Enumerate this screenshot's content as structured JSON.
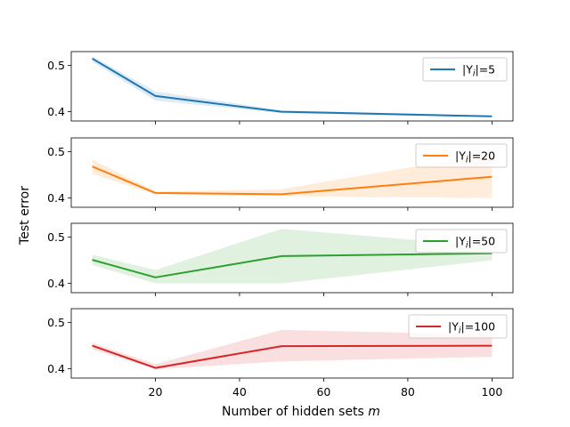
{
  "chart_data": {
    "type": "line",
    "xlabel": "Number of hidden sets",
    "xlabel_var": "m",
    "ylabel": "Test error",
    "xlim": [
      0,
      105
    ],
    "x_ticks": [
      20,
      40,
      60,
      80,
      100
    ],
    "x_tick_labels": [
      "20",
      "40",
      "60",
      "80",
      "100"
    ],
    "y_ticks": [
      0.4,
      0.5
    ],
    "y_tick_labels": [
      "0.4",
      "0.5"
    ],
    "legend_position": "top-right",
    "subplots": [
      {
        "legend_prefix": "|Y",
        "legend_sub": "i",
        "legend_suffix": "|=5",
        "color": "#1f77b4",
        "ylim": [
          0.38,
          0.53
        ],
        "x": [
          5,
          20,
          50,
          100
        ],
        "values": [
          0.515,
          0.434,
          0.4,
          0.39
        ],
        "lower": [
          0.508,
          0.424,
          0.397,
          0.388
        ],
        "upper": [
          0.52,
          0.444,
          0.403,
          0.392
        ]
      },
      {
        "legend_prefix": "|Y",
        "legend_sub": "i",
        "legend_suffix": "|=20",
        "color": "#ff7f0e",
        "ylim": [
          0.38,
          0.53
        ],
        "x": [
          5,
          20,
          50,
          100
        ],
        "values": [
          0.468,
          0.411,
          0.408,
          0.446
        ],
        "lower": [
          0.452,
          0.408,
          0.404,
          0.4
        ],
        "upper": [
          0.483,
          0.414,
          0.419,
          0.497
        ]
      },
      {
        "legend_prefix": "|Y",
        "legend_sub": "i",
        "legend_suffix": "|=50",
        "color": "#2ca02c",
        "ylim": [
          0.38,
          0.53
        ],
        "x": [
          5,
          20,
          50,
          100
        ],
        "values": [
          0.451,
          0.413,
          0.459,
          0.465
        ],
        "lower": [
          0.44,
          0.4,
          0.4,
          0.45
        ],
        "upper": [
          0.462,
          0.429,
          0.518,
          0.48
        ]
      },
      {
        "legend_prefix": "|Y",
        "legend_sub": "i",
        "legend_suffix": "|=100",
        "color": "#d62728",
        "ylim": [
          0.38,
          0.53
        ],
        "x": [
          5,
          20,
          50,
          100
        ],
        "values": [
          0.45,
          0.402,
          0.449,
          0.45
        ],
        "lower": [
          0.442,
          0.399,
          0.416,
          0.426
        ],
        "upper": [
          0.456,
          0.41,
          0.484,
          0.474
        ]
      }
    ]
  }
}
